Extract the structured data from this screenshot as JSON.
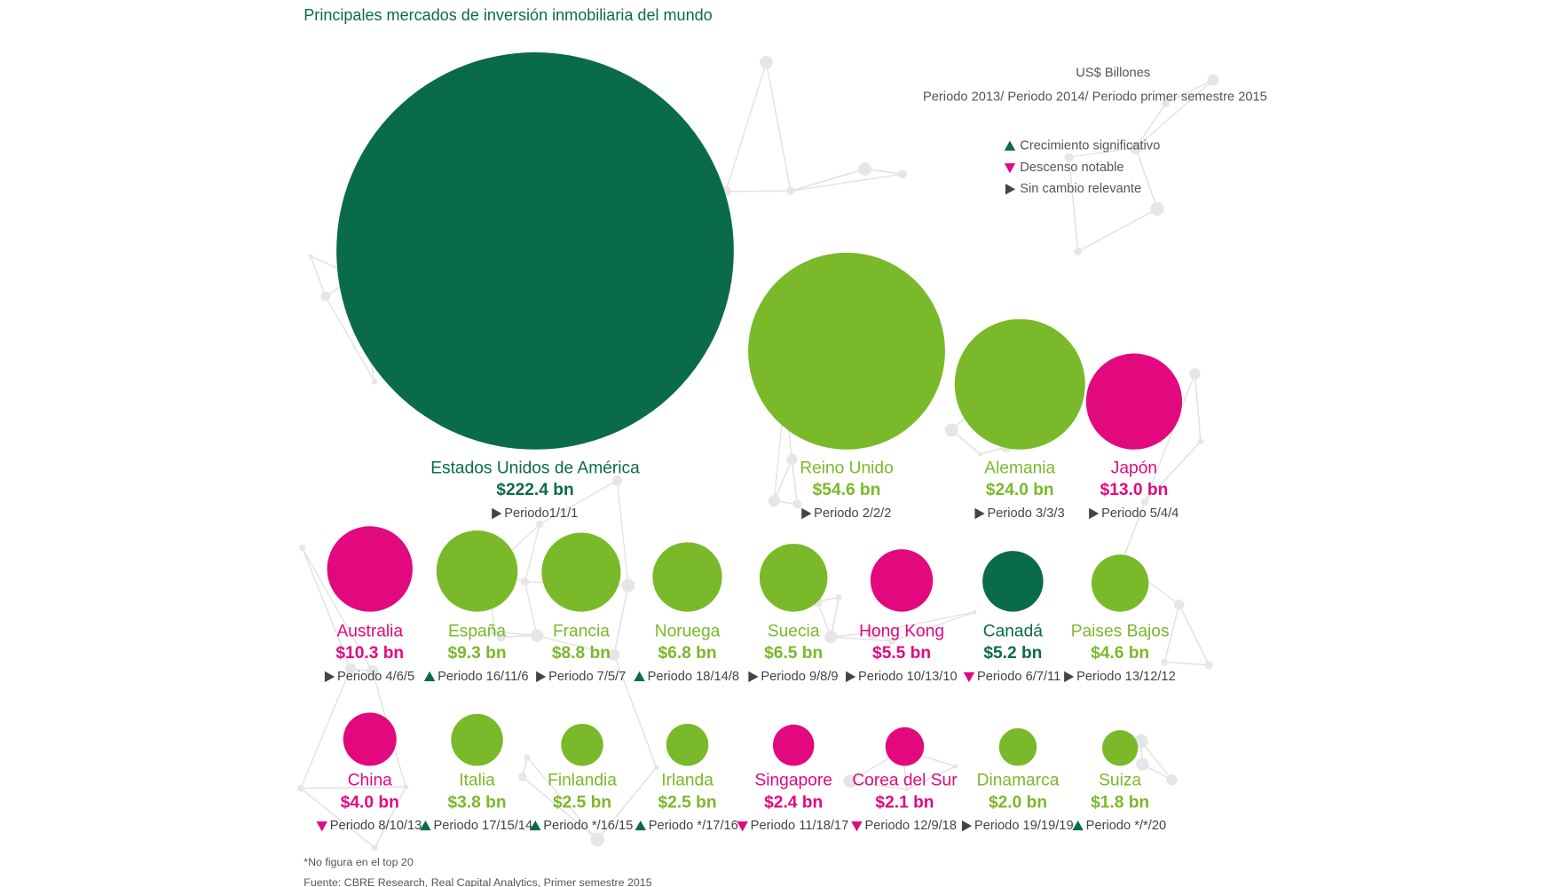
{
  "chart_data": {
    "type": "bubble",
    "title": "Principales mercados de inversión inmobiliaria del mundo",
    "unit": "US$ Billones",
    "subtitle": "Periodo 2013/ Periodo  2014/ Periodo primer semestre 2015",
    "categories": [
      "Estados Unidos de América",
      "Reino Unido",
      "Alemania",
      "Japón",
      "Australia",
      "España",
      "Francia",
      "Noruega",
      "Suecia",
      "Hong Kong",
      "Canadá",
      "Paises Bajos",
      "China",
      "Italia",
      "Finlandia",
      "Irlanda",
      "Singapore",
      "Corea del Sur",
      "Dinamarca",
      "Suiza"
    ],
    "values": [
      222.4,
      54.6,
      24.0,
      13.0,
      10.3,
      9.3,
      8.8,
      6.8,
      6.5,
      5.5,
      5.2,
      4.6,
      4.0,
      3.8,
      2.5,
      2.5,
      2.4,
      2.1,
      2.0,
      1.8
    ],
    "value_labels": [
      "$222.4 bn",
      "$54.6 bn",
      "$24.0 bn",
      "$13.0 bn",
      "$10.3 bn",
      "$9.3 bn",
      "$8.8 bn",
      "$6.8 bn",
      "$6.5 bn",
      "$5.5 bn",
      "$5.2 bn",
      "$4.6 bn",
      "$4.0 bn",
      "$3.8 bn",
      "$2.5 bn",
      "$2.5 bn",
      "$2.4 bn",
      "$2.1 bn",
      "$2.0 bn",
      "$1.8 bn"
    ],
    "period_labels": [
      "Periodo1/1/1",
      "Periodo 2/2/2",
      "Periodo 3/3/3",
      "Periodo 5/4/4",
      "Periodo 4/6/5",
      "Periodo 16/11/6",
      "Periodo 7/5/7",
      "Periodo 18/14/8",
      "Periodo 9/8/9",
      "Periodo 10/13/10",
      "Periodo 6/7/11",
      "Periodo 13/12/12",
      "Periodo 8/10/13",
      "Periodo 17/15/14",
      "Periodo */16/15",
      "Periodo */17/16",
      "Periodo 11/18/17",
      "Periodo 12/9/18",
      "Periodo 19/19/19",
      "Periodo */*/20"
    ],
    "trends": [
      "flat",
      "flat",
      "flat",
      "flat",
      "flat",
      "up",
      "flat",
      "up",
      "flat",
      "flat",
      "down",
      "flat",
      "down",
      "up",
      "up",
      "up",
      "down",
      "down",
      "flat",
      "up"
    ],
    "colors": [
      "#0a6b4b",
      "#7ab929",
      "#7ab929",
      "#e2097f",
      "#e2097f",
      "#7ab929",
      "#7ab929",
      "#7ab929",
      "#7ab929",
      "#e2097f",
      "#0a6b4b",
      "#7ab929",
      "#e2097f",
      "#7ab929",
      "#7ab929",
      "#7ab929",
      "#e2097f",
      "#e2097f",
      "#7ab929",
      "#7ab929"
    ],
    "trend_colors": {
      "up": "#0a6b4b",
      "down": "#e2097f",
      "flat": "#444444"
    },
    "legend": [
      {
        "trend": "up",
        "label": "Crecimiento significativo"
      },
      {
        "trend": "down",
        "label": "Descenso notable"
      },
      {
        "trend": "flat",
        "label": "Sin cambio relevante"
      }
    ],
    "notes": [
      "*No figura en el top 20",
      "Fuente: CBRE Research, Real Capital Analytics, Primer semestre 2015"
    ]
  }
}
